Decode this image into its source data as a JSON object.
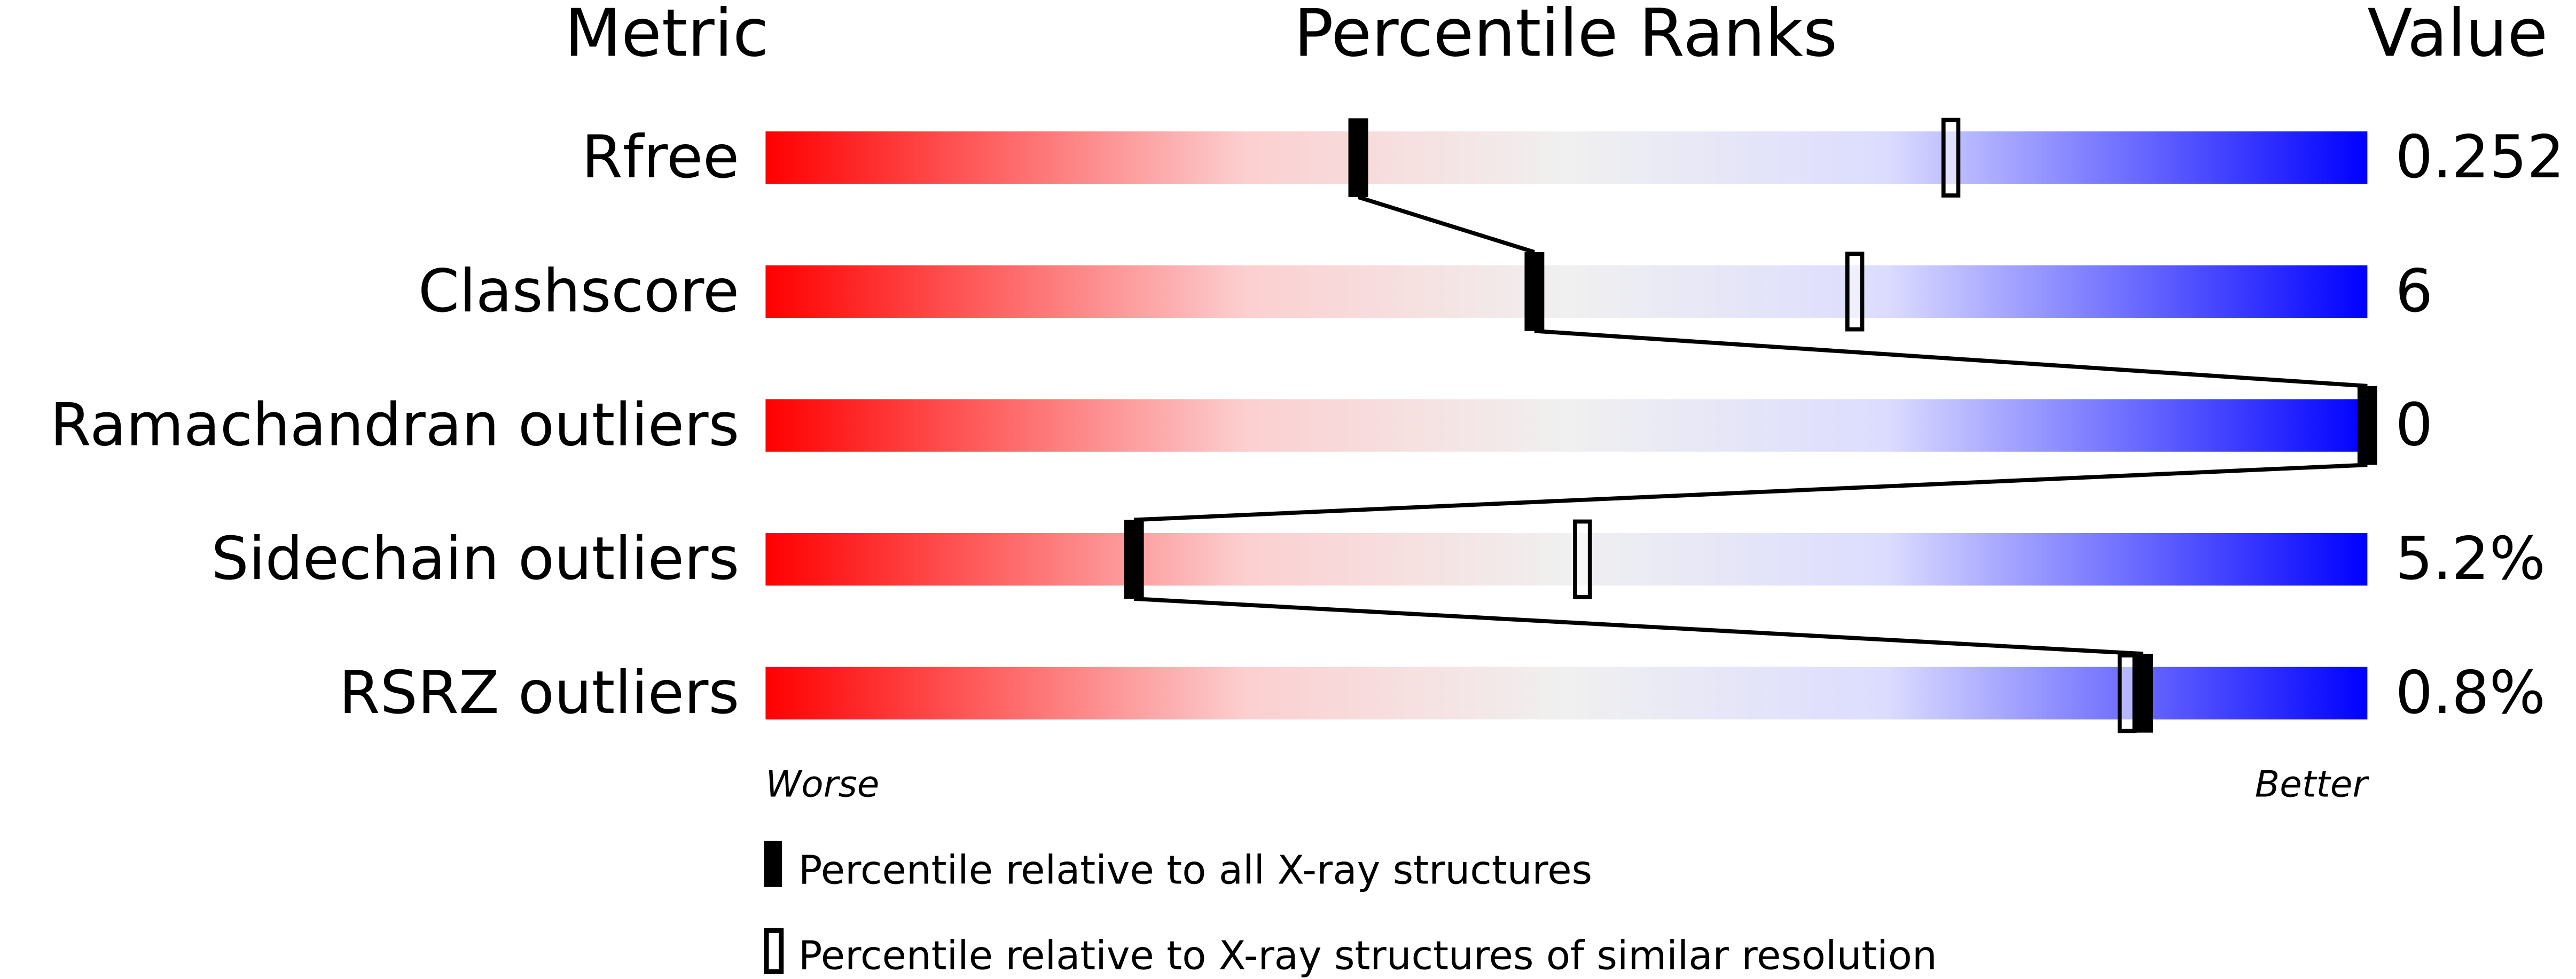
{
  "chart_data": {
    "type": "percentile-bar",
    "headers": {
      "metric": "Metric",
      "ranks": "Percentile Ranks",
      "value": "Value"
    },
    "xlim": [
      0,
      100
    ],
    "metrics": [
      {
        "name": "Rfree",
        "value": "0.252",
        "percentile_all": 37,
        "percentile_similar": 74
      },
      {
        "name": "Clashscore",
        "value": "6",
        "percentile_all": 48,
        "percentile_similar": 68
      },
      {
        "name": "Ramachandran outliers",
        "value": "0",
        "percentile_all": 100,
        "percentile_similar": null
      },
      {
        "name": "Sidechain outliers",
        "value": "5.2%",
        "percentile_all": 23,
        "percentile_similar": 51
      },
      {
        "name": "RSRZ outliers",
        "value": "0.8%",
        "percentile_all": 86,
        "percentile_similar": 85
      }
    ],
    "axis_labels": {
      "left": "Worse",
      "right": "Better"
    },
    "legend": {
      "all": "Percentile relative to all X-ray structures",
      "similar": "Percentile relative to X-ray structures of similar resolution"
    },
    "colors": {
      "worse": "#ff0000",
      "middle": "#f0f0f0",
      "better": "#0000ff",
      "marker": "#000000"
    }
  }
}
